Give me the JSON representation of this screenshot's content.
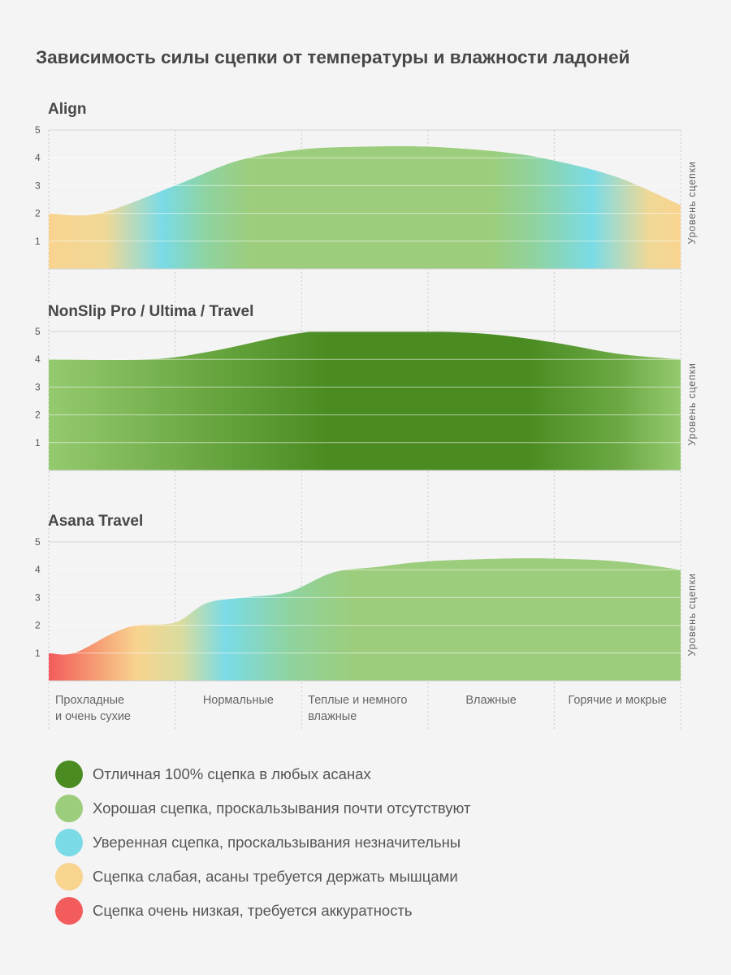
{
  "title": "Зависимость силы сцепки от температуры и влажности ладоней",
  "chart_data": {
    "type": "area",
    "categories": [
      "Прохладные\nи очень сухие",
      "Нормальные",
      "Теплые и немного\nвлажные",
      "Влажные",
      "Горячие и мокрые"
    ],
    "ylabel": "Уровень сцепки",
    "yticks": [
      1,
      2,
      3,
      4,
      5
    ],
    "ylim": [
      0,
      5
    ],
    "grid": true,
    "legend_position": "bottom",
    "panels": [
      {
        "title": "Align",
        "x": [
          0,
          0.4,
          1.0,
          1.5,
          2.0,
          2.5,
          3.0,
          3.6,
          4.0,
          4.5,
          5.0
        ],
        "values": [
          2.0,
          2.0,
          3.0,
          3.9,
          4.3,
          4.4,
          4.4,
          4.2,
          3.9,
          3.3,
          2.3
        ],
        "colors": [
          {
            "x": 0,
            "color": "#f8d48f"
          },
          {
            "x": 0.45,
            "color": "#f0d896"
          },
          {
            "x": 0.9,
            "color": "#7adbe6"
          },
          {
            "x": 1.25,
            "color": "#8fd3a0"
          },
          {
            "x": 1.6,
            "color": "#9ccd7c"
          },
          {
            "x": 3.5,
            "color": "#9ccd7c"
          },
          {
            "x": 3.85,
            "color": "#8fd3a0"
          },
          {
            "x": 4.3,
            "color": "#7adbe6"
          },
          {
            "x": 4.75,
            "color": "#f0d896"
          },
          {
            "x": 5.0,
            "color": "#f8d48f"
          }
        ]
      },
      {
        "title": "NonSlip Pro / Ultima / Travel",
        "x": [
          0,
          0.8,
          1.3,
          2.0,
          2.5,
          3.0,
          3.5,
          4.0,
          4.5,
          5.0
        ],
        "values": [
          4.0,
          4.0,
          4.3,
          4.95,
          5.0,
          5.0,
          4.9,
          4.6,
          4.2,
          4.0
        ],
        "colors": [
          {
            "x": 0,
            "color": "#95ca6f"
          },
          {
            "x": 1.2,
            "color": "#6ba843"
          },
          {
            "x": 2.2,
            "color": "#4a8c22"
          },
          {
            "x": 3.8,
            "color": "#4a8c22"
          },
          {
            "x": 4.5,
            "color": "#6ba843"
          },
          {
            "x": 5.0,
            "color": "#95ca6f"
          }
        ]
      },
      {
        "title": "Asana Travel",
        "x": [
          0,
          0.2,
          0.5,
          0.7,
          1.0,
          1.25,
          1.55,
          1.9,
          2.25,
          2.6,
          3.0,
          3.6,
          4.0,
          4.5,
          5.0
        ],
        "values": [
          1.0,
          1.0,
          1.7,
          2.0,
          2.1,
          2.8,
          3.0,
          3.2,
          3.9,
          4.1,
          4.3,
          4.4,
          4.4,
          4.3,
          4.0
        ],
        "colors": [
          {
            "x": 0,
            "color": "#f25c5c"
          },
          {
            "x": 0.3,
            "color": "#f5906e"
          },
          {
            "x": 0.7,
            "color": "#f8d48f"
          },
          {
            "x": 1.05,
            "color": "#d9dc9e"
          },
          {
            "x": 1.4,
            "color": "#7adbe6"
          },
          {
            "x": 1.9,
            "color": "#8fd3a0"
          },
          {
            "x": 2.4,
            "color": "#9ccd7c"
          },
          {
            "x": 5.0,
            "color": "#9ccd7c"
          }
        ]
      }
    ]
  },
  "legend": [
    {
      "label": "Отличная 100% сцепка в любых асанах",
      "color": "#4a8c22"
    },
    {
      "label": "Хорошая сцепка, проскальзывания почти отсутствуют",
      "color": "#9ccd7c"
    },
    {
      "label": "Уверенная сцепка, проскальзывания незначительны",
      "color": "#7adbe6"
    },
    {
      "label": "Сцепка слабая, асаны требуется держать мышцами",
      "color": "#f8d48f"
    },
    {
      "label": "Сцепка очень низкая, требуется аккуратность",
      "color": "#f25c5c"
    }
  ]
}
